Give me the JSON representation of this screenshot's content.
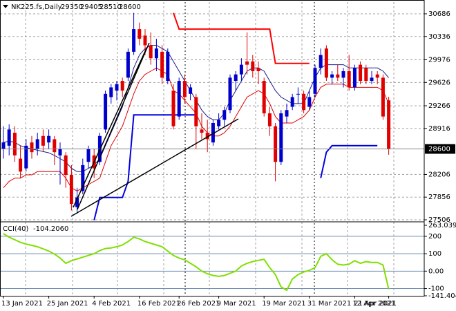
{
  "chart_data": {
    "type": "candlestick",
    "symbol": "NK225.fs,Daily",
    "categories": [
      "13 Jan 2021",
      null,
      null,
      null,
      null,
      null,
      null,
      null,
      "25 Jan 2021",
      null,
      null,
      null,
      null,
      null,
      null,
      null,
      "4 Feb 2021",
      null,
      null,
      null,
      null,
      null,
      null,
      null,
      "16 Feb 2021",
      null,
      null,
      null,
      null,
      null,
      null,
      "26 Feb 2021",
      null,
      null,
      null,
      null,
      null,
      null,
      "9 Mar 2021",
      null,
      null,
      null,
      null,
      null,
      null,
      null,
      "19 Mar 2021",
      null,
      null,
      null,
      null,
      null,
      null,
      null,
      "31 Mar 2021",
      null,
      null,
      null,
      null,
      null,
      null,
      null,
      "12 Apr 2021",
      null,
      null,
      null,
      null,
      null,
      "21 Apr 2021"
    ],
    "candles": [
      [
        28600,
        28950,
        28450,
        28700
      ],
      [
        28650,
        28980,
        28500,
        28900
      ],
      [
        28850,
        28950,
        28400,
        28500
      ],
      [
        28450,
        28650,
        28150,
        28250
      ],
      [
        28300,
        28750,
        28250,
        28650
      ],
      [
        28700,
        28800,
        28450,
        28550
      ],
      [
        28600,
        28850,
        28500,
        28750
      ],
      [
        28800,
        28900,
        28550,
        28650
      ],
      [
        28700,
        28900,
        28600,
        28800
      ],
      [
        28750,
        28800,
        28350,
        28550
      ],
      [
        28500,
        28700,
        28050,
        28600
      ],
      [
        28500,
        28550,
        28000,
        28200
      ],
      [
        28200,
        28350,
        27650,
        27750
      ],
      [
        27700,
        28000,
        27600,
        27850
      ],
      [
        27950,
        28450,
        27900,
        28350
      ],
      [
        28400,
        28650,
        28300,
        28600
      ],
      [
        28500,
        28600,
        28150,
        28300
      ],
      [
        28400,
        28850,
        28350,
        28800
      ],
      [
        28900,
        29500,
        28850,
        29450
      ],
      [
        29400,
        29600,
        29300,
        29550
      ],
      [
        29500,
        29650,
        29350,
        29600
      ],
      [
        29650,
        29700,
        29400,
        29500
      ],
      [
        29700,
        30150,
        29650,
        30100
      ],
      [
        30100,
        30700,
        30050,
        30450
      ],
      [
        30450,
        30550,
        30200,
        30300
      ],
      [
        30350,
        30450,
        30050,
        30200
      ],
      [
        30200,
        30400,
        29900,
        30000
      ],
      [
        30000,
        30300,
        29800,
        30150
      ],
      [
        30100,
        30200,
        29600,
        29700
      ],
      [
        29650,
        30150,
        29600,
        30100
      ],
      [
        29500,
        29600,
        28900,
        28950
      ],
      [
        29100,
        29700,
        29050,
        29650
      ],
      [
        29650,
        29750,
        29300,
        29400
      ],
      [
        29450,
        29600,
        29350,
        29550
      ],
      [
        29400,
        29450,
        28600,
        28950
      ],
      [
        28900,
        29150,
        28750,
        28850
      ],
      [
        28850,
        29050,
        28550,
        28750
      ],
      [
        28700,
        29050,
        28650,
        29000
      ],
      [
        28950,
        29150,
        28900,
        29050
      ],
      [
        29050,
        29250,
        28950,
        29200
      ],
      [
        29200,
        29750,
        29150,
        29700
      ],
      [
        29650,
        29800,
        29500,
        29750
      ],
      [
        29750,
        30000,
        29650,
        29900
      ],
      [
        29950,
        30400,
        29750,
        29900
      ],
      [
        29950,
        30050,
        29700,
        29800
      ],
      [
        29850,
        29950,
        29600,
        29800
      ],
      [
        29650,
        29700,
        29100,
        29150
      ],
      [
        29150,
        29250,
        28800,
        28950
      ],
      [
        28950,
        29000,
        28100,
        28400
      ],
      [
        28400,
        29200,
        28350,
        29150
      ],
      [
        29100,
        29300,
        29000,
        29200
      ],
      [
        29250,
        29450,
        29200,
        29400
      ],
      [
        29450,
        29550,
        29300,
        29450
      ],
      [
        29450,
        29500,
        29150,
        29200
      ],
      [
        29250,
        29500,
        29200,
        29400
      ],
      [
        29450,
        29900,
        29400,
        29850
      ],
      [
        29850,
        30150,
        29750,
        30050
      ],
      [
        30150,
        30200,
        29650,
        29700
      ],
      [
        29700,
        29800,
        29600,
        29750
      ],
      [
        29750,
        29900,
        29650,
        29700
      ],
      [
        29700,
        29850,
        29550,
        29800
      ],
      [
        29800,
        30050,
        29500,
        29550
      ],
      [
        29550,
        29900,
        29500,
        29850
      ],
      [
        29900,
        29950,
        29600,
        29650
      ],
      [
        29850,
        29900,
        29600,
        29650
      ],
      [
        29650,
        29800,
        29600,
        29700
      ],
      [
        29750,
        29800,
        29600,
        29700
      ],
      [
        29700,
        29750,
        29050,
        29100
      ],
      [
        29350,
        29405,
        28510,
        28600
      ]
    ],
    "up_color": "#0000cd",
    "down_color": "#e00000",
    "series": [
      {
        "color": "#1a1a8c",
        "values": [
          28700,
          28720,
          28700,
          28650,
          28620,
          28600,
          28580,
          28560,
          28540,
          28500,
          28450,
          28400,
          28300,
          28250,
          28250,
          28300,
          28350,
          28450,
          28650,
          28850,
          29050,
          29250,
          29550,
          29850,
          30050,
          30150,
          30200,
          30200,
          30150,
          30100,
          29950,
          29800,
          29650,
          29500,
          29350,
          29200,
          29100,
          29050,
          29050,
          29150,
          29350,
          29500,
          29650,
          29800,
          29850,
          29850,
          29800,
          29650,
          29500,
          29400,
          29350,
          29300,
          29300,
          29300,
          29500,
          29700,
          29850,
          29900,
          29900,
          29900,
          29900,
          29850,
          29850,
          29850,
          29850,
          29850,
          29850,
          29800,
          29700
        ]
      },
      {
        "color": "#e00000",
        "values": [
          28000,
          28100,
          28150,
          28150,
          28200,
          28200,
          28250,
          28250,
          28250,
          28250,
          28250,
          28150,
          28000,
          27950,
          28000,
          28050,
          28100,
          28150,
          28400,
          28650,
          28800,
          28950,
          29200,
          29450,
          29650,
          29750,
          29800,
          29850,
          29800,
          29750,
          29500,
          29450,
          29350,
          29250,
          29150,
          28950,
          28850,
          28800,
          28800,
          28850,
          28950,
          29100,
          29250,
          29400,
          29450,
          29500,
          29450,
          29300,
          29100,
          29000,
          29000,
          29000,
          29050,
          29100,
          29200,
          29400,
          29550,
          29600,
          29600,
          29600,
          29600,
          29550,
          29550,
          29550,
          29550,
          29550,
          29550,
          29500,
          29300
        ]
      },
      {
        "color": "#ff0000",
        "values": [
          null,
          null,
          null,
          null,
          null,
          null,
          null,
          null,
          null,
          null,
          null,
          null,
          null,
          null,
          null,
          null,
          null,
          null,
          null,
          null,
          null,
          null,
          null,
          null,
          null,
          null,
          null,
          null,
          null,
          null,
          30700,
          30450,
          30450,
          30450,
          30450,
          30450,
          30450,
          30450,
          30450,
          30450,
          30450,
          30450,
          30450,
          30450,
          30450,
          30450,
          30450,
          30450,
          29920,
          29920,
          29920,
          29920,
          29920,
          29920,
          29920,
          null,
          null,
          null,
          null,
          null,
          null,
          null,
          null,
          null,
          null,
          null,
          null,
          null,
          null
        ]
      },
      {
        "color": "#0000e0",
        "values": [
          null,
          null,
          null,
          null,
          null,
          null,
          null,
          null,
          null,
          null,
          null,
          null,
          null,
          null,
          null,
          null,
          27500,
          27850,
          27850,
          27850,
          27850,
          27850,
          28100,
          29125,
          29125,
          29125,
          29125,
          29125,
          29125,
          29125,
          29125,
          29125,
          29125,
          29125,
          29125,
          null,
          null,
          null,
          null,
          null,
          null,
          null,
          null,
          null,
          null,
          null,
          null,
          null,
          null,
          null,
          null,
          null,
          null,
          null,
          null,
          null,
          28150,
          28550,
          28650,
          28650,
          28650,
          28650,
          28650,
          28650,
          28650,
          28650,
          28650,
          null,
          null
        ]
      }
    ],
    "ylim": [
      27485,
      30867
    ],
    "yticks": [
      30686,
      30336,
      29976,
      29626,
      29266,
      28916,
      28206,
      27856,
      27506
    ],
    "cci": {
      "name": "CCI(40)",
      "color": "#7fe000",
      "values": [
        215,
        195,
        180,
        165,
        155,
        148,
        140,
        128,
        115,
        98,
        75,
        45,
        60,
        70,
        80,
        90,
        100,
        118,
        130,
        133,
        140,
        150,
        170,
        195,
        185,
        170,
        160,
        150,
        140,
        115,
        90,
        75,
        65,
        45,
        25,
        0,
        -15,
        -25,
        -30,
        -25,
        -12,
        0,
        30,
        45,
        55,
        62,
        68,
        20,
        -20,
        -90,
        -110,
        -45,
        -20,
        -5,
        5,
        20,
        85,
        100,
        65,
        40,
        35,
        40,
        60,
        45,
        55,
        50,
        50,
        35,
        -104.206
      ],
      "value_labels": [
        null,
        null,
        null,
        null,
        null,
        null,
        null,
        null,
        null,
        null,
        null,
        null,
        null,
        null,
        null,
        null,
        null,
        null,
        null,
        null,
        null,
        null,
        null,
        null,
        null,
        null,
        null,
        null,
        null,
        null,
        null,
        null,
        null,
        null,
        null,
        null,
        null,
        null,
        null,
        null,
        null,
        null,
        null,
        null,
        null,
        null,
        null,
        null,
        null,
        null,
        null,
        null,
        null,
        null,
        null,
        null,
        null,
        null,
        null,
        null,
        null,
        null,
        null,
        null,
        null,
        null,
        null,
        null,
        "-104.2060"
      ],
      "ylim": [
        -141.404,
        263.0396
      ],
      "yticks": [
        263.0396,
        200,
        100,
        {
          "value": 0,
          "label": "0.00"
        },
        -100,
        -141.404
      ]
    }
  }
}
